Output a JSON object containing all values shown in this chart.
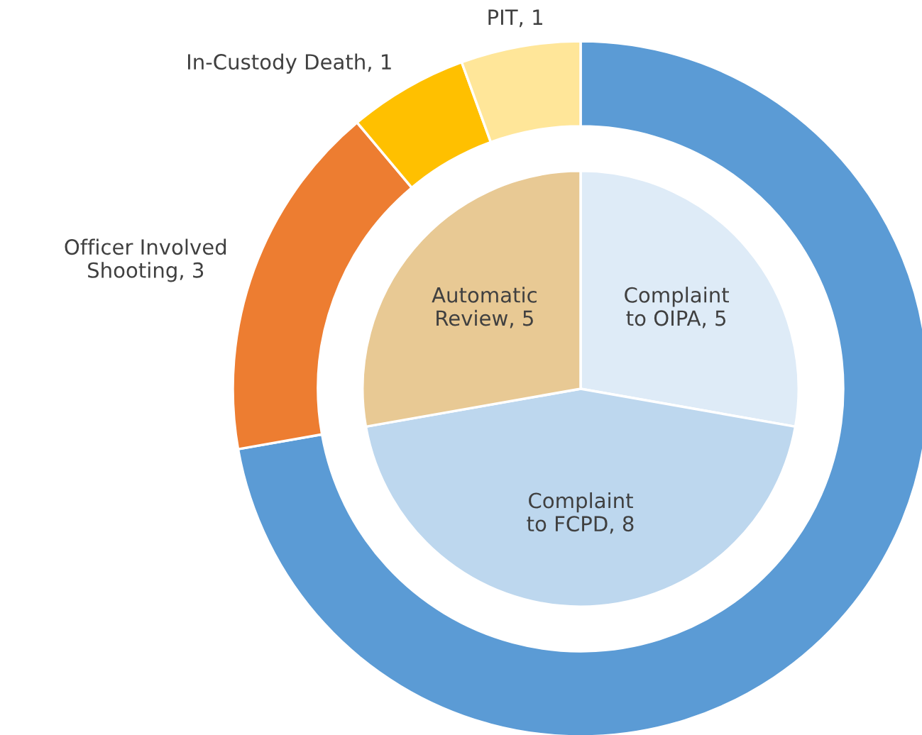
{
  "chart_data": {
    "type": "donut",
    "series": [
      {
        "values": [
          13,
          3,
          1,
          1
        ],
        "colors": [
          "#5b9bd5",
          "#ed7d31",
          "#ffc000",
          "#ffe699"
        ],
        "value_labels": [
          null,
          "Officer Involved Shooting, 3",
          "In-Custody Death, 1",
          "PIT, 1"
        ]
      },
      {
        "values": [
          5,
          8,
          5
        ],
        "colors": [
          "#deebf7",
          "#bdd7ee",
          "#e8c994"
        ],
        "value_labels": [
          "Complaint to OIPA, 5",
          "Complaint to FCPD, 8",
          "Automatic Review, 5"
        ]
      }
    ]
  }
}
